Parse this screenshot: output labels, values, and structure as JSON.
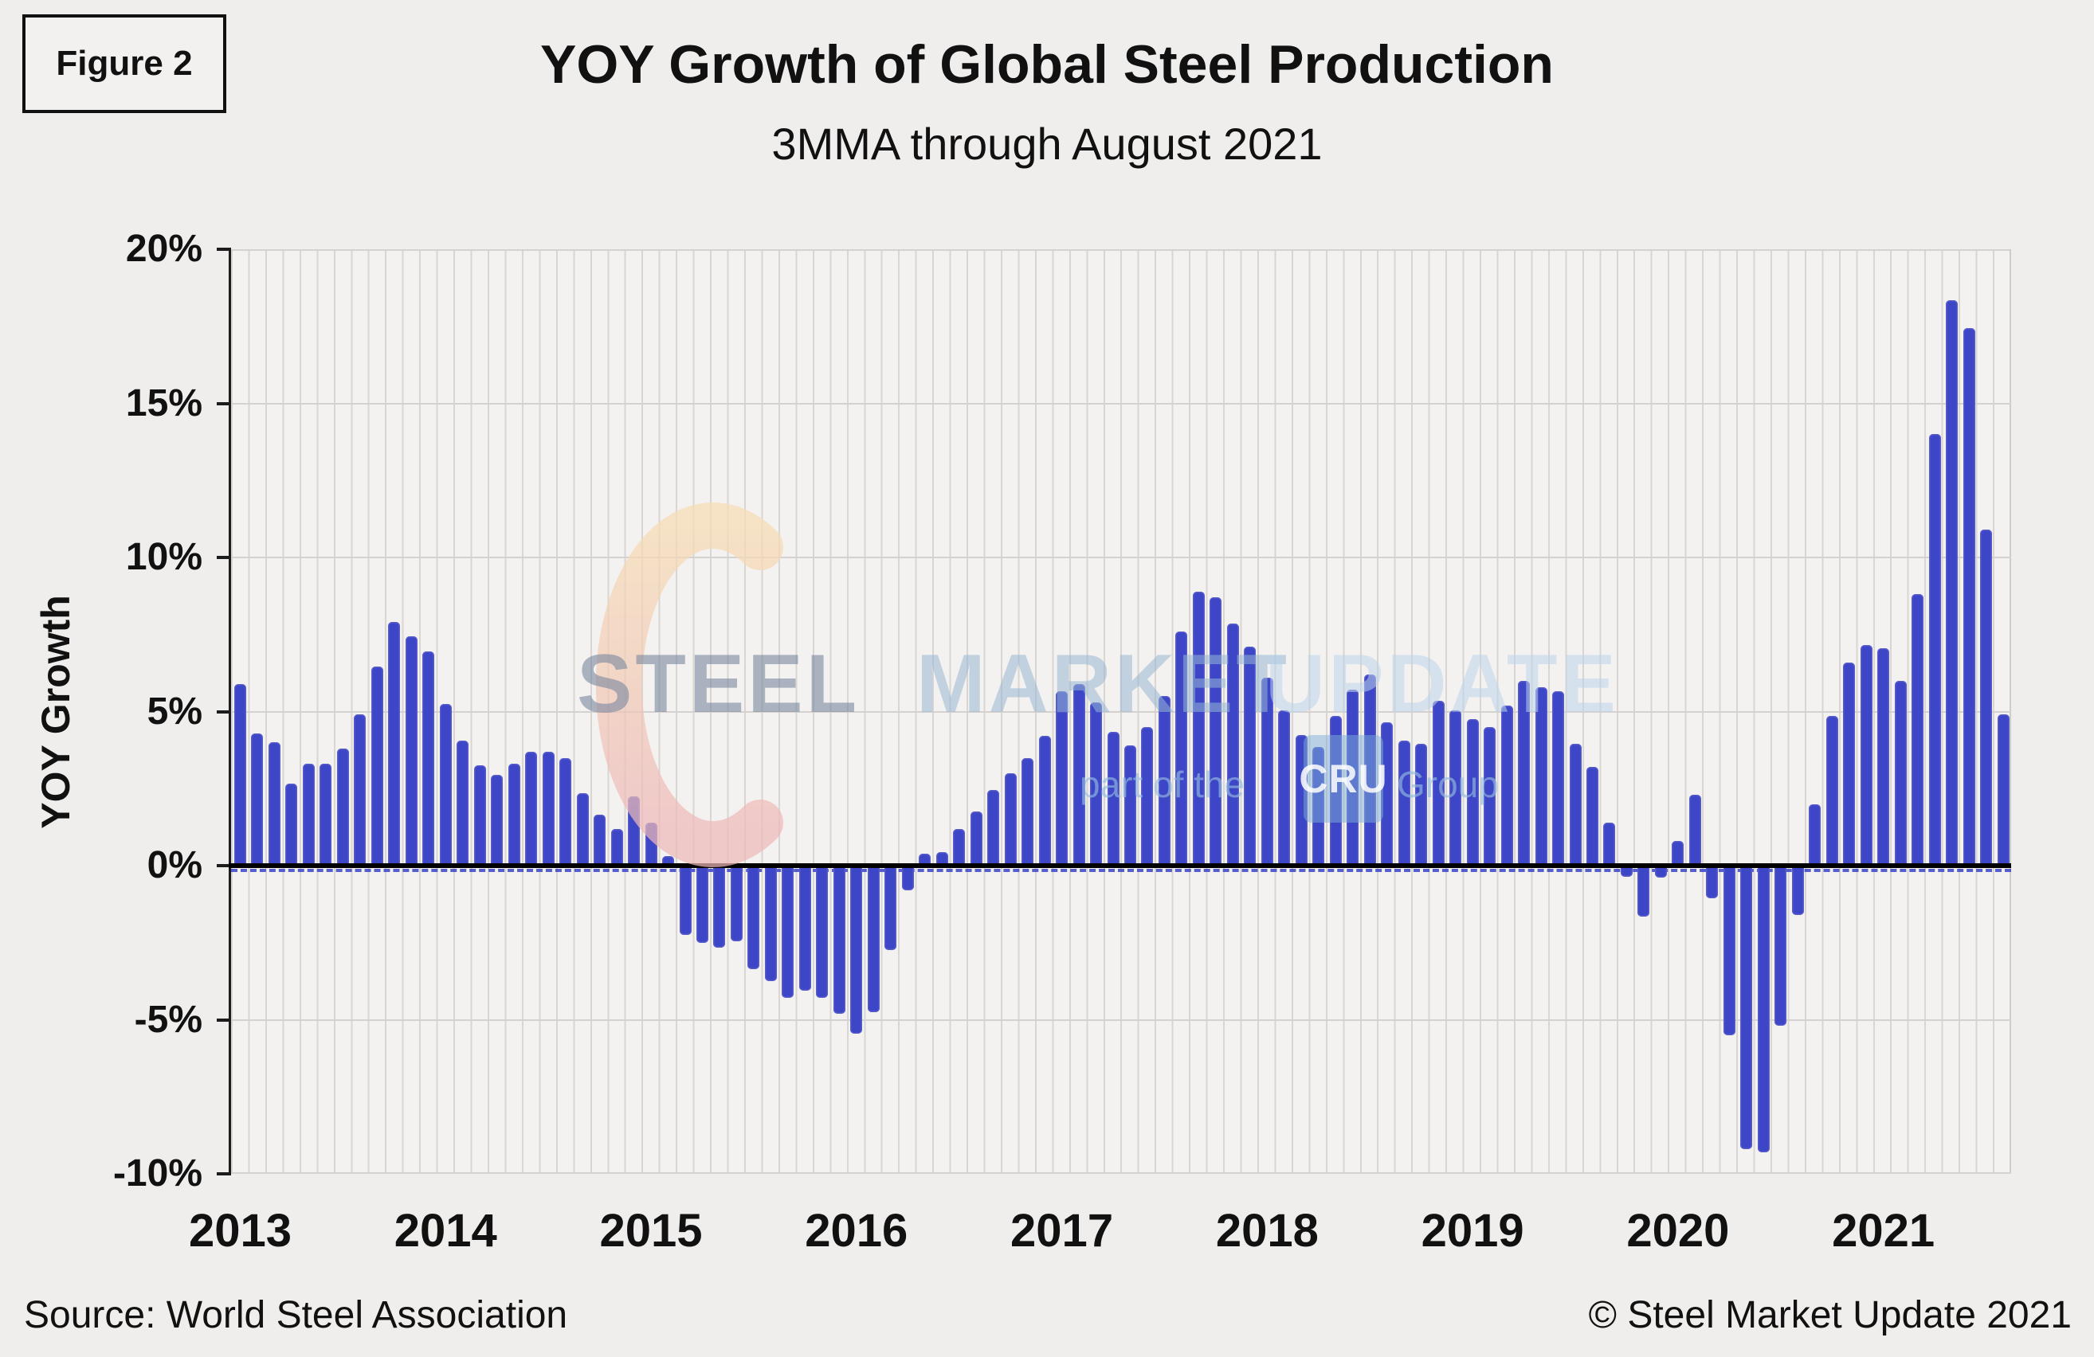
{
  "figure_label": "Figure 2",
  "header": {
    "title": "YOY Growth of Global Steel Production",
    "subtitle": "3MMA through August 2021"
  },
  "footer": {
    "source": "Source: World Steel Association",
    "copyright": "© Steel Market Update 2021"
  },
  "watermark": {
    "word1": "STEEL",
    "word2": "MARKET",
    "word3": "UPDATE",
    "tagline_prefix": "part of the",
    "tagline_box": "CRU",
    "tagline_suffix": "Group"
  },
  "colors": {
    "bar": "#3c46c6",
    "zero_line": "#000000",
    "zero_dashed": "#3b46c8",
    "gridline": "#d4d1ce",
    "plot_background": "#f4f2f0",
    "page_background": "#f0eeec",
    "crescent_top": "#f6dcb4",
    "crescent_bottom": "#edb7b9"
  },
  "chart_data": {
    "type": "bar",
    "title": "YOY Growth of Global Steel Production",
    "subtitle": "3MMA through August 2021",
    "xlabel": "",
    "ylabel": "YOY Growth",
    "ylim": [
      -10,
      20
    ],
    "ytick_values": [
      20,
      15,
      10,
      5,
      0,
      -5,
      -10
    ],
    "ytick_labels": [
      "20%",
      "15%",
      "10%",
      "5%",
      "0%",
      "-5%",
      "-10%"
    ],
    "year_ticks": [
      "2013",
      "2014",
      "2015",
      "2016",
      "2017",
      "2018",
      "2019",
      "2020",
      "2021"
    ],
    "grid": "on",
    "legend": "none",
    "months": [
      "2013-01",
      "2013-02",
      "2013-03",
      "2013-04",
      "2013-05",
      "2013-06",
      "2013-07",
      "2013-08",
      "2013-09",
      "2013-10",
      "2013-11",
      "2013-12",
      "2014-01",
      "2014-02",
      "2014-03",
      "2014-04",
      "2014-05",
      "2014-06",
      "2014-07",
      "2014-08",
      "2014-09",
      "2014-10",
      "2014-11",
      "2014-12",
      "2015-01",
      "2015-02",
      "2015-03",
      "2015-04",
      "2015-05",
      "2015-06",
      "2015-07",
      "2015-08",
      "2015-09",
      "2015-10",
      "2015-11",
      "2015-12",
      "2016-01",
      "2016-02",
      "2016-03",
      "2016-04",
      "2016-05",
      "2016-06",
      "2016-07",
      "2016-08",
      "2016-09",
      "2016-10",
      "2016-11",
      "2016-12",
      "2017-01",
      "2017-02",
      "2017-03",
      "2017-04",
      "2017-05",
      "2017-06",
      "2017-07",
      "2017-08",
      "2017-09",
      "2017-10",
      "2017-11",
      "2017-12",
      "2018-01",
      "2018-02",
      "2018-03",
      "2018-04",
      "2018-05",
      "2018-06",
      "2018-07",
      "2018-08",
      "2018-09",
      "2018-10",
      "2018-11",
      "2018-12",
      "2019-01",
      "2019-02",
      "2019-03",
      "2019-04",
      "2019-05",
      "2019-06",
      "2019-07",
      "2019-08",
      "2019-09",
      "2019-10",
      "2019-11",
      "2019-12",
      "2020-01",
      "2020-02",
      "2020-03",
      "2020-04",
      "2020-05",
      "2020-06",
      "2020-07",
      "2020-08",
      "2020-09",
      "2020-10",
      "2020-11",
      "2020-12",
      "2021-01",
      "2021-02",
      "2021-03",
      "2021-04",
      "2021-05",
      "2021-06",
      "2021-07",
      "2021-08"
    ],
    "values": [
      5.9,
      4.3,
      4.0,
      2.65,
      3.3,
      3.3,
      3.8,
      4.9,
      6.45,
      7.9,
      7.45,
      6.95,
      5.25,
      4.05,
      3.25,
      2.95,
      3.3,
      3.7,
      3.7,
      3.5,
      2.35,
      1.65,
      1.2,
      2.25,
      1.4,
      0.3,
      -2.25,
      -2.5,
      -2.65,
      -2.45,
      -3.35,
      -3.75,
      -4.3,
      -4.05,
      -4.3,
      -4.8,
      -5.45,
      -4.75,
      -2.75,
      -0.8,
      0.4,
      0.45,
      1.2,
      1.75,
      2.45,
      3.0,
      3.5,
      4.2,
      5.65,
      5.9,
      5.3,
      4.35,
      3.9,
      4.5,
      5.5,
      7.6,
      8.9,
      8.7,
      7.85,
      7.1,
      6.1,
      5.05,
      4.25,
      3.85,
      4.85,
      5.7,
      6.2,
      4.65,
      4.05,
      3.95,
      5.35,
      5.05,
      4.75,
      4.5,
      5.2,
      6.0,
      5.8,
      5.65,
      3.95,
      3.2,
      1.4,
      -0.35,
      -1.65,
      -0.4,
      0.8,
      2.3,
      -1.05,
      -5.5,
      -9.2,
      -9.3,
      -5.2,
      -1.6,
      2.0,
      4.85,
      6.6,
      7.15,
      7.05,
      6.0,
      8.8,
      14.0,
      18.35,
      17.45,
      10.9,
      4.9
    ]
  }
}
